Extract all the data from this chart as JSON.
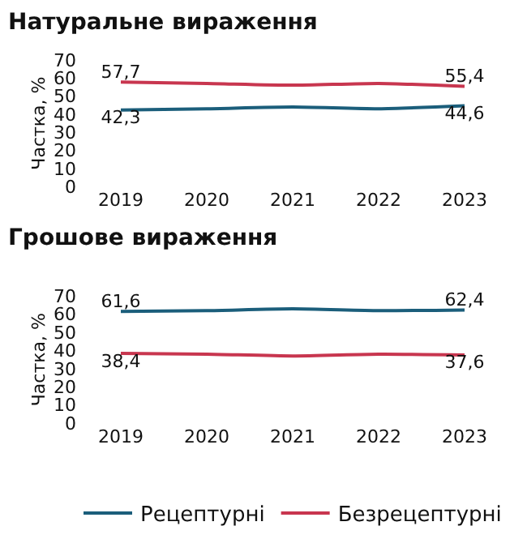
{
  "chart_data": [
    {
      "type": "line",
      "title": "Натуральне вираження",
      "ylabel": "Частка, %",
      "categories": [
        "2019",
        "2020",
        "2021",
        "2022",
        "2023"
      ],
      "ylim": [
        0,
        70
      ],
      "yticks": [
        0,
        10,
        20,
        30,
        40,
        50,
        60,
        70
      ],
      "marker": "none",
      "series": [
        {
          "color": "#1b5e7b",
          "values": [
            42.3,
            43,
            44,
            43,
            44.6
          ],
          "value_labels": [
            "42,3",
            null,
            null,
            null,
            "44,6"
          ]
        },
        {
          "color": "#c8364f",
          "values": [
            57.7,
            57,
            56,
            57,
            55.4
          ],
          "value_labels": [
            "57,7",
            null,
            null,
            null,
            "55,4"
          ]
        }
      ]
    },
    {
      "type": "line",
      "title": "Грошове вираження",
      "ylabel": "Частка, %",
      "categories": [
        "2019",
        "2020",
        "2021",
        "2022",
        "2023"
      ],
      "ylim": [
        0,
        70
      ],
      "yticks": [
        0,
        10,
        20,
        30,
        40,
        50,
        60,
        70
      ],
      "marker": "none",
      "legend": "bottom",
      "series": [
        {
          "name": "Рецептурні",
          "color": "#1b5e7b",
          "values": [
            61.6,
            62,
            63,
            62,
            62.4
          ],
          "value_labels": [
            "61,6",
            null,
            null,
            null,
            "62,4"
          ]
        },
        {
          "name": "Безрецептурні",
          "color": "#c8364f",
          "values": [
            38.4,
            38,
            37,
            38,
            37.6
          ],
          "value_labels": [
            "38,4",
            null,
            null,
            null,
            "37,6"
          ]
        }
      ]
    }
  ]
}
